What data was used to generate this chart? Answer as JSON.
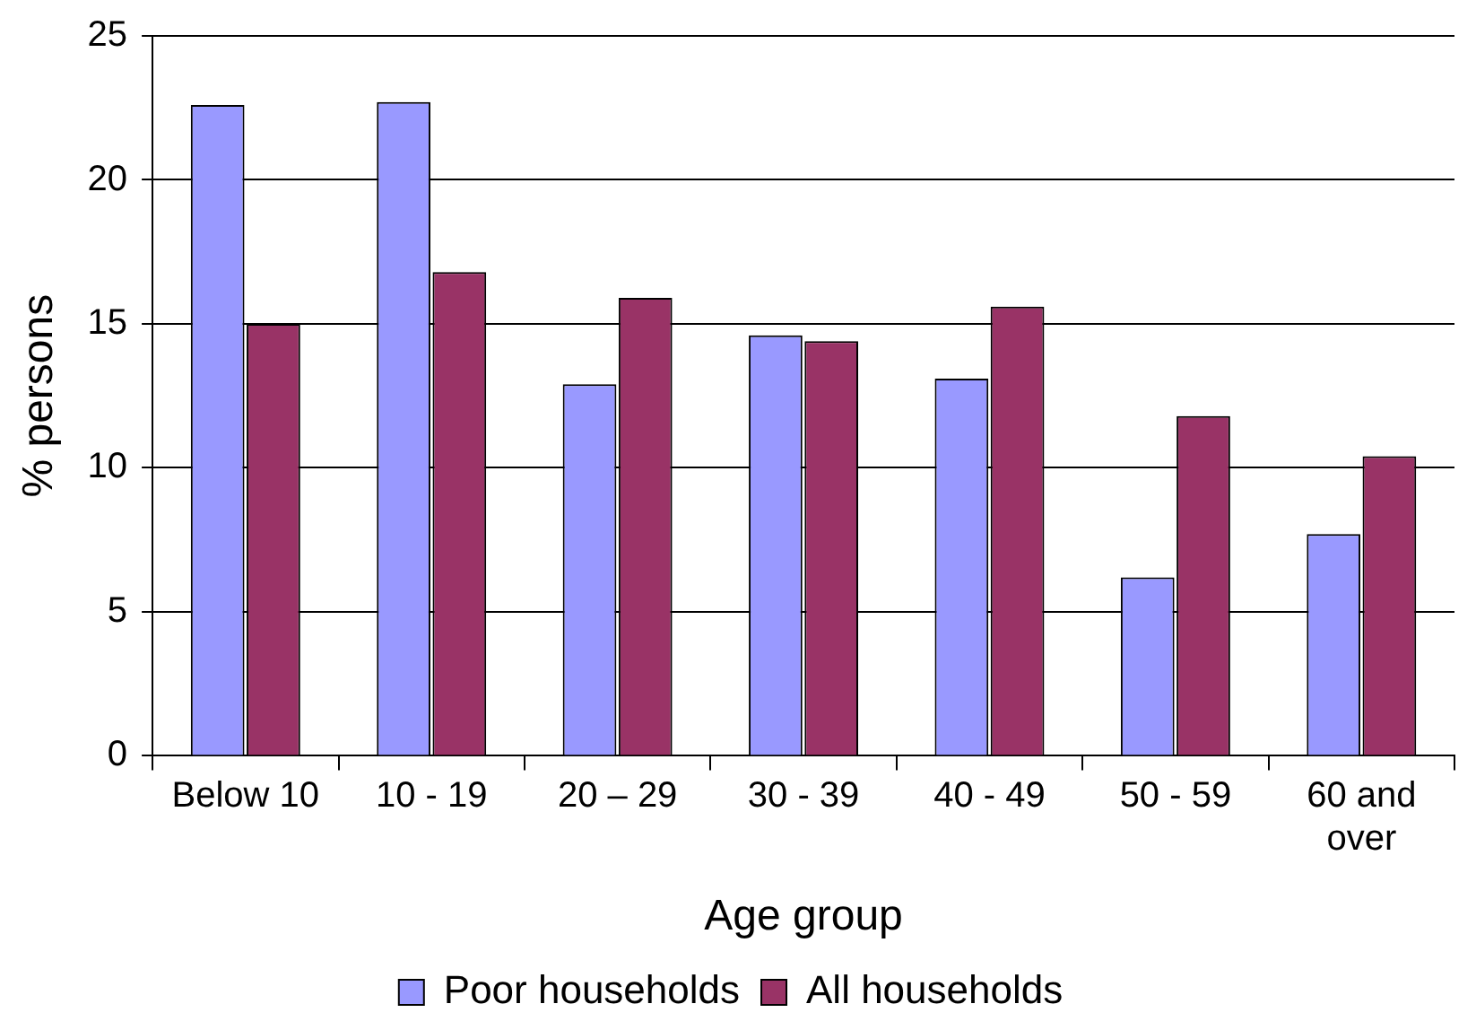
{
  "chart_data": {
    "type": "bar",
    "xlabel": "Age group",
    "ylabel": "% persons",
    "categories": [
      "Below 10",
      "10 - 19",
      "20 – 29",
      "30 - 39",
      "40 - 49",
      "50 - 59",
      "60 and over"
    ],
    "series": [
      {
        "name": "Poor households",
        "color": "#9999ff",
        "values": [
          22.6,
          22.7,
          12.9,
          14.6,
          13.1,
          6.2,
          7.7
        ]
      },
      {
        "name": "All households",
        "color": "#993366",
        "values": [
          15.0,
          16.8,
          15.9,
          14.4,
          15.6,
          11.8,
          10.4
        ]
      }
    ],
    "ylim": [
      0,
      25
    ],
    "yticks": [
      0,
      5,
      10,
      15,
      20,
      25
    ],
    "grid": "y",
    "legend": "bottom"
  }
}
